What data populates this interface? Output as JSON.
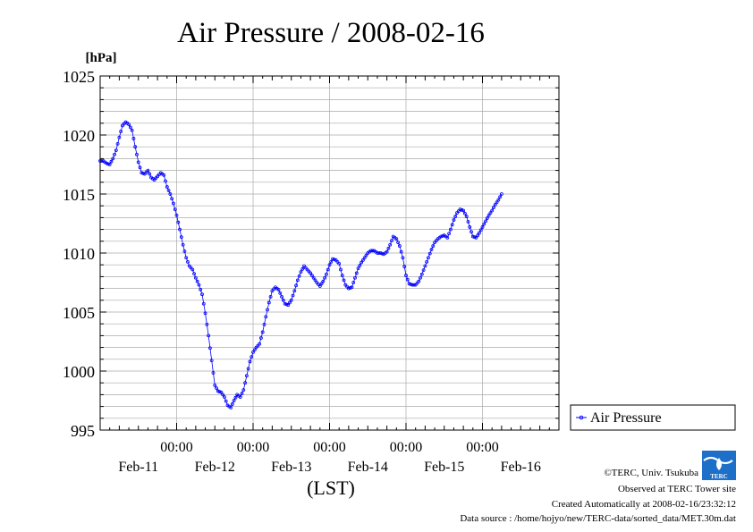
{
  "chart_data": {
    "type": "line",
    "title": "Air Pressure / 2008-02-16",
    "ylabel": "[hPa]",
    "xlabel": "(LST)",
    "ylim": [
      995,
      1025
    ],
    "ymajor": [
      995,
      1000,
      1005,
      1010,
      1015,
      1020,
      1025
    ],
    "yminor_step": 1,
    "grid": true,
    "legend_position": "right",
    "x_range_hours": [
      0,
      144
    ],
    "x_time_ticks": [
      {
        "hour": 24,
        "label": "00:00"
      },
      {
        "hour": 48,
        "label": "00:00"
      },
      {
        "hour": 72,
        "label": "00:00"
      },
      {
        "hour": 96,
        "label": "00:00"
      },
      {
        "hour": 120,
        "label": "00:00"
      }
    ],
    "x_day_labels": [
      {
        "hour": 12,
        "label": "Feb-11"
      },
      {
        "hour": 36,
        "label": "Feb-12"
      },
      {
        "hour": 60,
        "label": "Feb-13"
      },
      {
        "hour": 84,
        "label": "Feb-14"
      },
      {
        "hour": 108,
        "label": "Feb-15"
      },
      {
        "hour": 132,
        "label": "Feb-16"
      }
    ],
    "series": [
      {
        "name": "Air Pressure",
        "color": "#0000ff",
        "points": [
          [
            0,
            1017.8
          ],
          [
            1,
            1017.8
          ],
          [
            2,
            1017.6
          ],
          [
            3,
            1017.5
          ],
          [
            4,
            1018.0
          ],
          [
            5,
            1018.7
          ],
          [
            6,
            1019.8
          ],
          [
            7,
            1020.8
          ],
          [
            8,
            1021.1
          ],
          [
            9,
            1020.9
          ],
          [
            10,
            1020.4
          ],
          [
            11,
            1019.0
          ],
          [
            12,
            1017.7
          ],
          [
            13,
            1016.8
          ],
          [
            14,
            1016.7
          ],
          [
            15,
            1017.0
          ],
          [
            16,
            1016.4
          ],
          [
            17,
            1016.2
          ],
          [
            18,
            1016.5
          ],
          [
            19,
            1016.8
          ],
          [
            20,
            1016.6
          ],
          [
            21,
            1015.6
          ],
          [
            22,
            1015.0
          ],
          [
            23,
            1014.2
          ],
          [
            24,
            1013.2
          ],
          [
            25,
            1012.0
          ],
          [
            26,
            1010.7
          ],
          [
            27,
            1009.6
          ],
          [
            28,
            1008.9
          ],
          [
            29,
            1008.6
          ],
          [
            30,
            1007.9
          ],
          [
            31,
            1007.3
          ],
          [
            32,
            1006.5
          ],
          [
            33,
            1004.9
          ],
          [
            34,
            1003.0
          ],
          [
            35,
            1000.9
          ],
          [
            36,
            998.8
          ],
          [
            37,
            998.3
          ],
          [
            38,
            998.2
          ],
          [
            39,
            997.8
          ],
          [
            40,
            997.1
          ],
          [
            41,
            996.9
          ],
          [
            42,
            997.5
          ],
          [
            43,
            998.0
          ],
          [
            44,
            997.8
          ],
          [
            45,
            998.4
          ],
          [
            46,
            999.6
          ],
          [
            47,
            1000.8
          ],
          [
            48,
            1001.6
          ],
          [
            49,
            1002.0
          ],
          [
            50,
            1002.3
          ],
          [
            51,
            1003.3
          ],
          [
            52,
            1004.6
          ],
          [
            53,
            1005.8
          ],
          [
            54,
            1006.8
          ],
          [
            55,
            1007.1
          ],
          [
            56,
            1006.9
          ],
          [
            57,
            1006.3
          ],
          [
            58,
            1005.7
          ],
          [
            59,
            1005.6
          ],
          [
            60,
            1006.0
          ],
          [
            61,
            1006.8
          ],
          [
            62,
            1007.7
          ],
          [
            63,
            1008.4
          ],
          [
            64,
            1008.9
          ],
          [
            65,
            1008.6
          ],
          [
            66,
            1008.3
          ],
          [
            67,
            1007.9
          ],
          [
            68,
            1007.5
          ],
          [
            69,
            1007.2
          ],
          [
            70,
            1007.6
          ],
          [
            71,
            1008.2
          ],
          [
            72,
            1009.0
          ],
          [
            73,
            1009.5
          ],
          [
            74,
            1009.4
          ],
          [
            75,
            1009.1
          ],
          [
            76,
            1008.1
          ],
          [
            77,
            1007.3
          ],
          [
            78,
            1007.0
          ],
          [
            79,
            1007.1
          ],
          [
            80,
            1007.9
          ],
          [
            81,
            1008.7
          ],
          [
            82,
            1009.2
          ],
          [
            83,
            1009.6
          ],
          [
            84,
            1010.0
          ],
          [
            85,
            1010.2
          ],
          [
            86,
            1010.2
          ],
          [
            87,
            1010.0
          ],
          [
            88,
            1010.0
          ],
          [
            89,
            1009.9
          ],
          [
            90,
            1010.1
          ],
          [
            91,
            1010.7
          ],
          [
            92,
            1011.4
          ],
          [
            93,
            1011.2
          ],
          [
            94,
            1010.6
          ],
          [
            95,
            1009.6
          ],
          [
            96,
            1008.1
          ],
          [
            97,
            1007.4
          ],
          [
            98,
            1007.3
          ],
          [
            99,
            1007.3
          ],
          [
            100,
            1007.6
          ],
          [
            101,
            1008.2
          ],
          [
            102,
            1008.9
          ],
          [
            103,
            1009.6
          ],
          [
            104,
            1010.3
          ],
          [
            105,
            1010.9
          ],
          [
            106,
            1011.2
          ],
          [
            107,
            1011.4
          ],
          [
            108,
            1011.5
          ],
          [
            109,
            1011.3
          ],
          [
            110,
            1012.0
          ],
          [
            111,
            1012.8
          ],
          [
            112,
            1013.4
          ],
          [
            113,
            1013.7
          ],
          [
            114,
            1013.6
          ],
          [
            115,
            1013.1
          ],
          [
            116,
            1012.2
          ],
          [
            117,
            1011.4
          ],
          [
            118,
            1011.3
          ],
          [
            119,
            1011.7
          ],
          [
            120,
            1012.2
          ],
          [
            121,
            1012.7
          ],
          [
            122,
            1013.2
          ],
          [
            123,
            1013.6
          ],
          [
            124,
            1014.1
          ],
          [
            125,
            1014.5
          ],
          [
            126,
            1015.0
          ]
        ]
      }
    ]
  },
  "footer": {
    "copyright": "©TERC, Univ. Tsukuba",
    "observed": "Observed at TERC Tower site",
    "created": "Created Automatically at 2008-02-16/23:32:12",
    "source": "Data source : /home/hojyo/new/TERC-data/sorted_data/MET.30m.dat",
    "logo_text": "TERC"
  },
  "colors": {
    "line": "#0000ff",
    "grid": "#aaaaaa",
    "logo": "#1e6fc8"
  }
}
